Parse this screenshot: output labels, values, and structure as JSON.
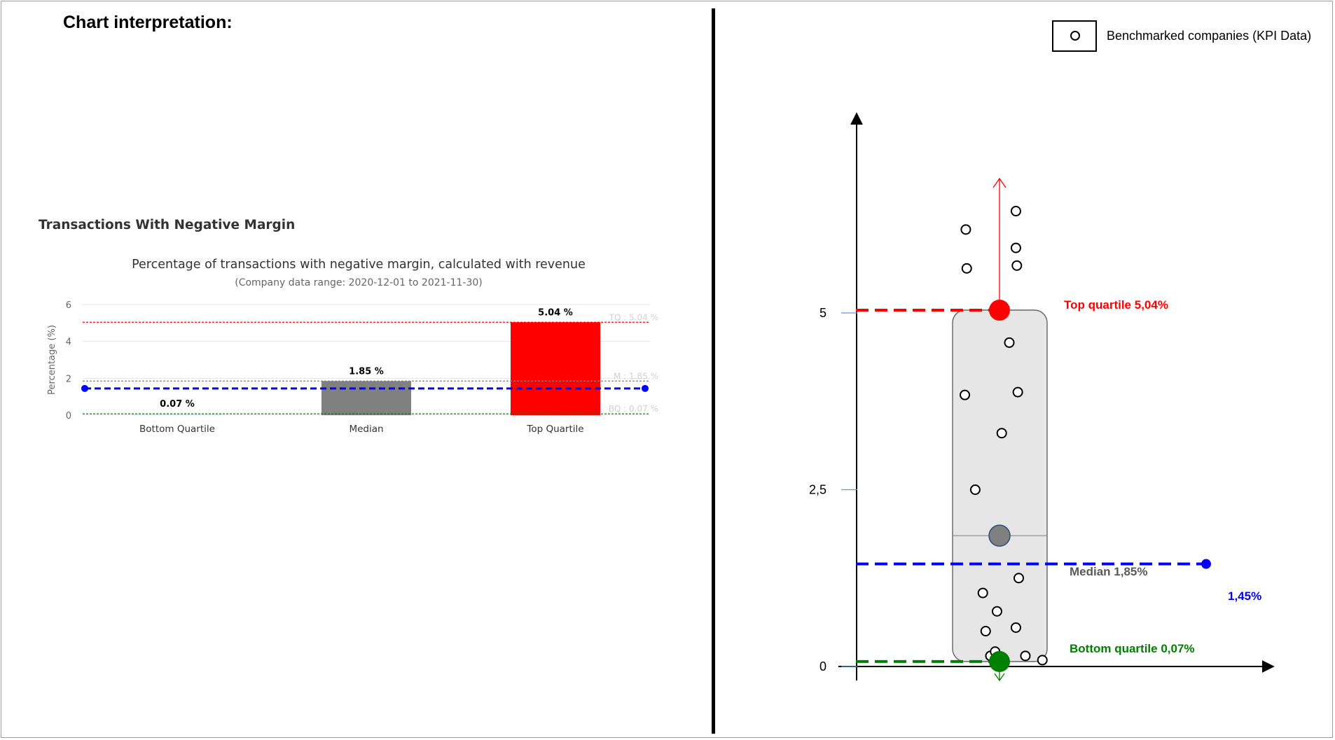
{
  "heading": "Chart interpretation:",
  "left_chart": {
    "card_title": "Transactions With Negative Margin",
    "title": "Percentage of transactions with negative margin, calculated with revenue",
    "subtitle": "(Company data range: 2020-12-01 to 2021-11-30)"
  },
  "right_diagram": {
    "legend_label": "Benchmarked companies (KPI Data)",
    "y_ticks": [
      "5",
      "2,5",
      "0"
    ],
    "labels": {
      "top_quartile": "Top quartile  5,04%",
      "median": "Median  1,85%",
      "company": "1,45%",
      "bottom_quartile": "Bottom quartile  0,07%"
    }
  },
  "colors": {
    "top_quartile": "#ff0000",
    "median": "#808080",
    "bottom_quartile": "#008000",
    "company_line": "#0000ff"
  },
  "chart_data": [
    {
      "type": "bar",
      "title": "Percentage of transactions with negative margin, calculated with revenue",
      "subtitle": "(Company data range: 2020-12-01 to 2021-11-30)",
      "ylabel": "Percentage (%)",
      "xlabel": "",
      "ylim": [
        0,
        6
      ],
      "y_ticks": [
        0,
        2,
        4,
        6
      ],
      "grid": true,
      "categories": [
        "Bottom Quartile",
        "Median",
        "Top Quartile"
      ],
      "values": [
        0.07,
        1.85,
        5.04
      ],
      "value_labels": [
        "0.07 %",
        "1.85 %",
        "5.04 %"
      ],
      "bar_colors": [
        "#d9e8f5",
        "#808080",
        "#ff0000"
      ],
      "reference_lines": [
        {
          "name": "TQ : 5.04 %",
          "value": 5.04,
          "color": "#ff0000",
          "style": "dotted"
        },
        {
          "name": "M : 1.85 %",
          "value": 1.85,
          "color": "#808080",
          "style": "dotted"
        },
        {
          "name": "BQ : 0.07 %",
          "value": 0.07,
          "color": "#008000",
          "style": "dotted"
        },
        {
          "name": "",
          "value": 1.45,
          "color": "#0000ff",
          "style": "dashed"
        }
      ]
    },
    {
      "type": "scatter",
      "ylim": [
        0,
        6.8
      ],
      "y_ticks": [
        {
          "value": 0,
          "label": "0"
        },
        {
          "value": 2.5,
          "label": "2,5"
        },
        {
          "value": 5,
          "label": "5"
        }
      ],
      "legend": "Benchmarked companies (KPI Data)",
      "points": [
        {
          "x": 0.4,
          "y": 0.15
        },
        {
          "x": 0.45,
          "y": 0.21
        },
        {
          "x": 0.49,
          "y": 0.09
        },
        {
          "x": 0.77,
          "y": 0.15
        },
        {
          "x": 0.95,
          "y": 0.09
        },
        {
          "x": 0.35,
          "y": 0.5
        },
        {
          "x": 0.47,
          "y": 0.78
        },
        {
          "x": 0.67,
          "y": 0.55
        },
        {
          "x": 0.32,
          "y": 1.04
        },
        {
          "x": 0.7,
          "y": 1.25
        },
        {
          "x": 0.24,
          "y": 2.5
        },
        {
          "x": 0.52,
          "y": 3.3
        },
        {
          "x": 0.13,
          "y": 3.84
        },
        {
          "x": 0.69,
          "y": 3.88
        },
        {
          "x": 0.6,
          "y": 4.58
        },
        {
          "x": 0.15,
          "y": 5.63
        },
        {
          "x": 0.68,
          "y": 5.67
        },
        {
          "x": 0.67,
          "y": 5.92
        },
        {
          "x": 0.14,
          "y": 6.18
        },
        {
          "x": 0.67,
          "y": 6.44
        }
      ],
      "markers": [
        {
          "name": "Top quartile",
          "value": 5.04,
          "color": "#ff0000"
        },
        {
          "name": "Median",
          "value": 1.85,
          "color": "#808080"
        },
        {
          "name": "Bottom quartile",
          "value": 0.07,
          "color": "#008000"
        },
        {
          "name": "Company",
          "value": 1.45,
          "color": "#0000ff"
        }
      ]
    }
  ]
}
